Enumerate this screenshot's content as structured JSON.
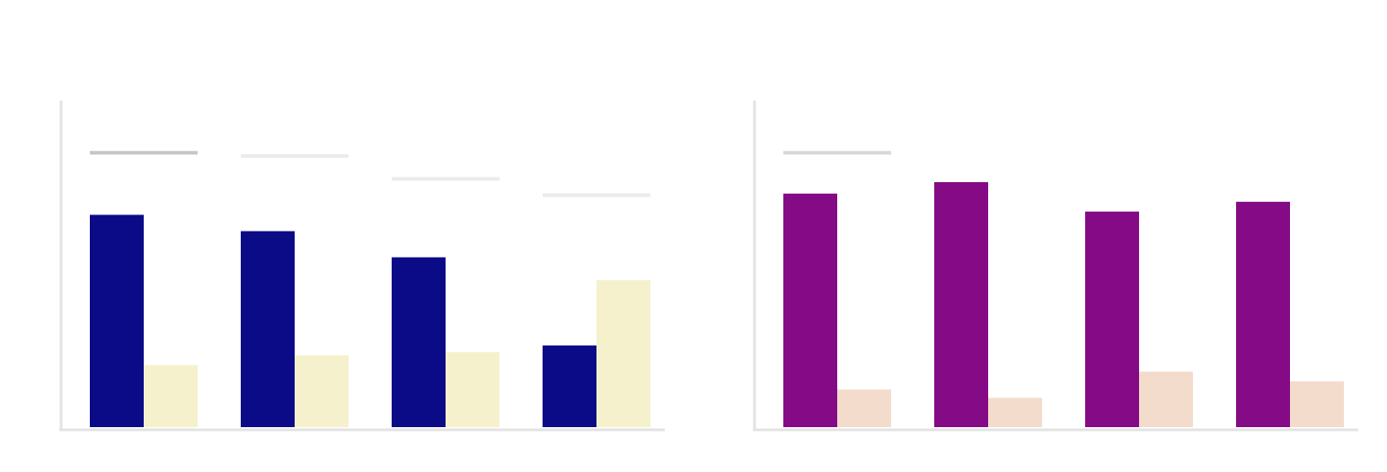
{
  "chart_data": [
    {
      "type": "bar",
      "title": "",
      "xlabel": "",
      "ylabel": "",
      "categories": [
        "",
        "",
        "",
        ""
      ],
      "ylim": [
        0,
        100
      ],
      "grid": false,
      "series": [
        {
          "color": "#0b0b87",
          "values": [
            65,
            60,
            52,
            25
          ]
        },
        {
          "color": "#f5f1cc",
          "values": [
            19,
            22,
            23,
            45
          ]
        }
      ],
      "reference_marks": {
        "values": [
          84,
          83,
          76,
          71
        ],
        "colors": [
          "#c6c6c6",
          "#ebebeb",
          "#ebebeb",
          "#ebebeb"
        ]
      },
      "axis_color": "#e3e3e3"
    },
    {
      "type": "bar",
      "title": "",
      "xlabel": "",
      "ylabel": "",
      "categories": [
        "",
        "",
        "",
        ""
      ],
      "ylim": [
        0,
        100
      ],
      "grid": false,
      "series": [
        {
          "color": "#850a85",
          "values": [
            71.5,
            75,
            66,
            69
          ]
        },
        {
          "color": "#f3dccc",
          "values": [
            11.5,
            9,
            17,
            14
          ]
        }
      ],
      "reference_marks": {
        "values": [
          84
        ],
        "colors": [
          "#d8d8d8"
        ]
      },
      "axis_color": "#e3e3e3"
    }
  ]
}
